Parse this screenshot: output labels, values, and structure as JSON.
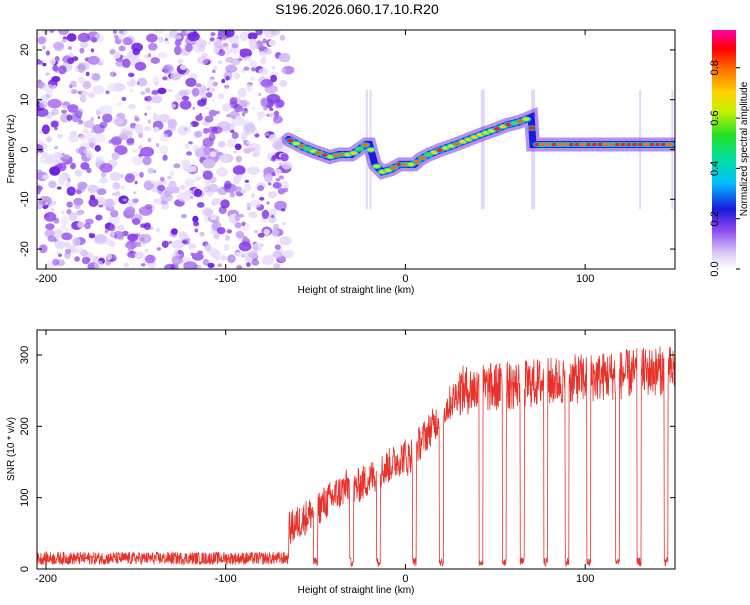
{
  "title": "S196.2026.060.17.10.R20",
  "chart_data": [
    {
      "type": "heatmap",
      "xlabel": "Height of straight line (km)",
      "ylabel": "Frequency (Hz)",
      "xlim": [
        -205,
        150
      ],
      "ylim": [
        -24,
        24
      ],
      "x_ticks": [
        -200,
        -100,
        0,
        100
      ],
      "y_ticks": [
        -20,
        -10,
        0,
        10,
        20
      ],
      "noise_region_x": [
        -205,
        -65
      ],
      "signal_track": {
        "x": [
          -65,
          -57,
          -50,
          -42,
          -37,
          -30,
          -22,
          -20,
          -17,
          -13,
          -8,
          -3,
          0,
          5,
          8,
          13,
          20,
          28,
          35,
          42,
          50,
          57,
          63,
          70,
          71,
          80,
          90,
          100,
          110,
          120,
          130,
          140,
          150
        ],
        "y": [
          2,
          0.5,
          -0.5,
          -1.5,
          -1,
          -1,
          1,
          1,
          -3,
          -4.5,
          -4,
          -3,
          -3,
          -3,
          -2,
          -1,
          0,
          1,
          2,
          3,
          4,
          5,
          5.5,
          6.5,
          1,
          1,
          1,
          1,
          1,
          1,
          1,
          1,
          1
        ]
      },
      "colorbar": {
        "label": "Normalized spectral amplitude",
        "range": [
          0.0,
          0.95
        ],
        "ticks": [
          0.0,
          0.2,
          0.4,
          0.6,
          0.8
        ]
      }
    },
    {
      "type": "line",
      "color": "#e8312a",
      "xlabel": "Height of straight line (km)",
      "ylabel": "SNR (10 * v/v)",
      "xlim": [
        -205,
        150
      ],
      "ylim": [
        0,
        335
      ],
      "x_ticks": [
        -200,
        -100,
        0,
        100
      ],
      "y_ticks": [
        0,
        100,
        200,
        300
      ],
      "baseline_level": [
        -205,
        -65,
        15
      ],
      "segments": [
        {
          "x": [
            -65,
            -30
          ],
          "y": [
            55,
            120
          ]
        },
        {
          "x": [
            -30,
            0
          ],
          "y": [
            110,
            160
          ]
        },
        {
          "x": [
            0,
            30
          ],
          "y": [
            150,
            250
          ]
        },
        {
          "x": [
            30,
            150
          ],
          "y": [
            250,
            280
          ]
        }
      ]
    }
  ]
}
